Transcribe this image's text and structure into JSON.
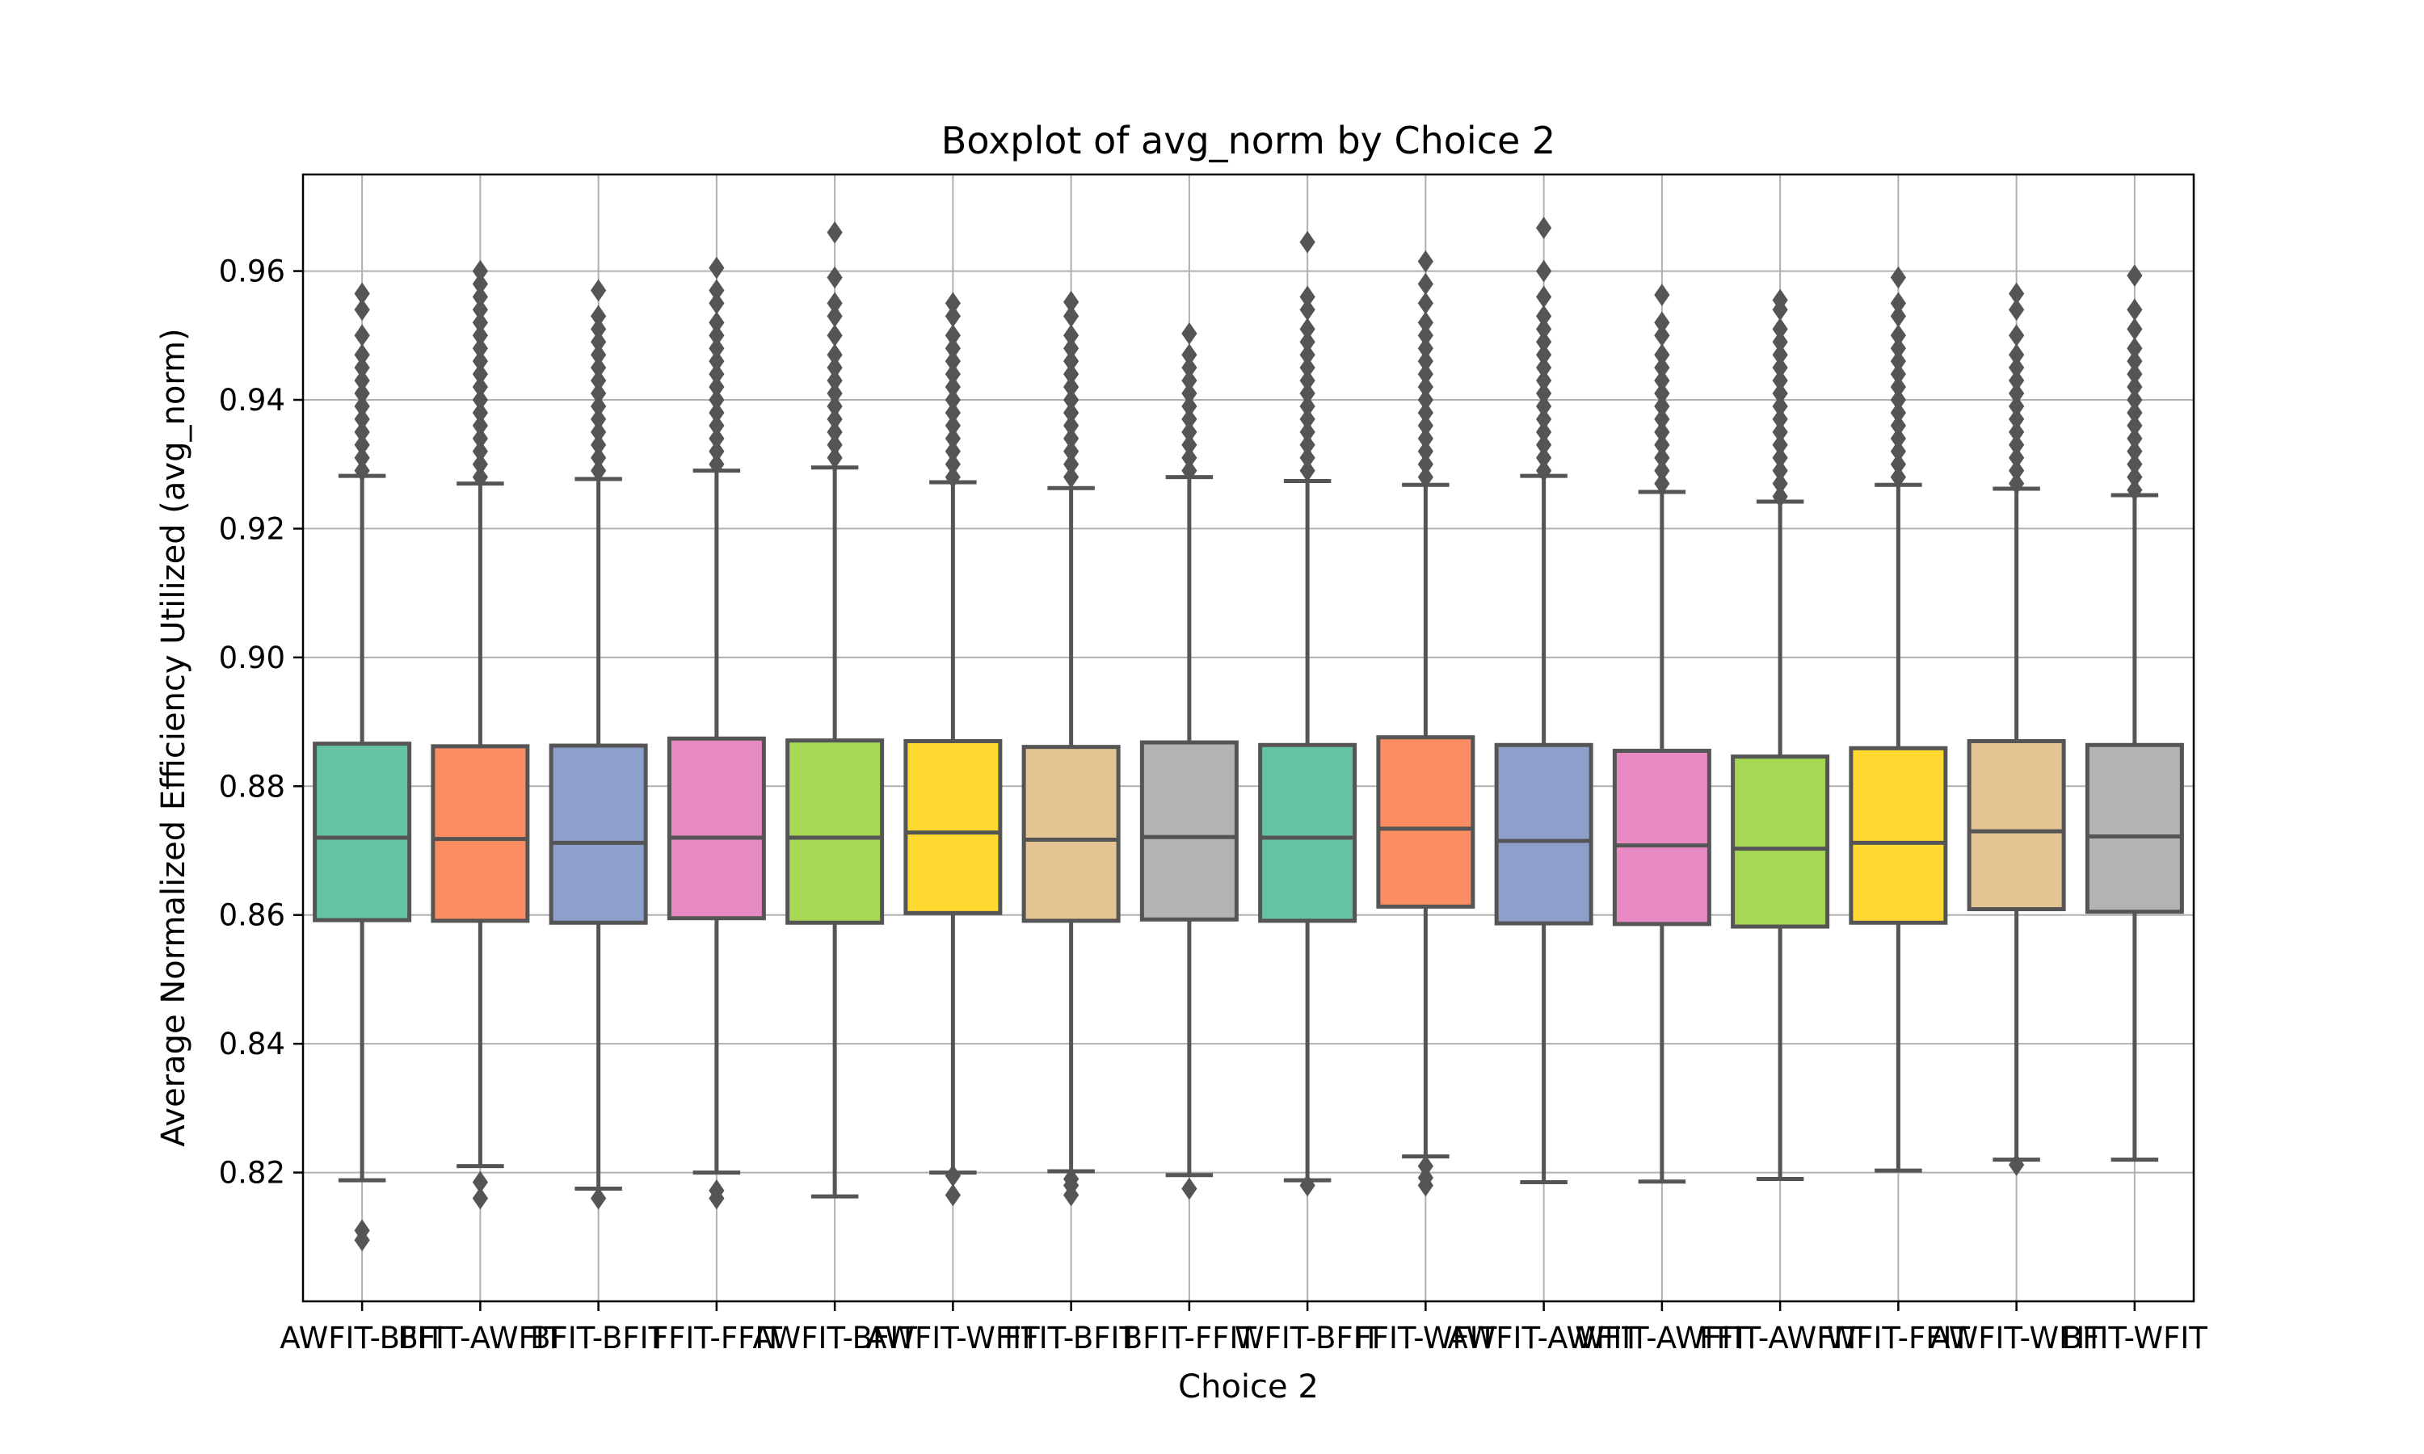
{
  "chart_data": {
    "type": "box",
    "title": "Boxplot of avg_norm by Choice 2",
    "xlabel": "Choice 2",
    "ylabel": "Average Normalized Efficiency Utilized (avg_norm)",
    "ylim": [
      0.8,
      0.975
    ],
    "yticks": [
      "0.82",
      "0.84",
      "0.86",
      "0.88",
      "0.90",
      "0.92",
      "0.94",
      "0.96"
    ],
    "grid": true,
    "categories": [
      "AWFIT-BFIT",
      "BFIT-AWFIT",
      "BFIT-BFIT",
      "FFIT-FFIT",
      "AWFIT-BFIT",
      "AWFIT-WFIT",
      "FFIT-BFIT",
      "BFIT-FFIT",
      "WFIT-BFIT",
      "FFIT-WFIT",
      "AWFIT-AWFIT",
      "WFIT-AWFIT",
      "FFIT-AWFIT",
      "WFIT-FFIT",
      "AWFIT-WFIT",
      "BFIT-WFIT"
    ],
    "colors": [
      "#66c2a5",
      "#fc8d62",
      "#8da0cb",
      "#e78ac3",
      "#a6d854",
      "#ffd92f",
      "#e5c494",
      "#b3b3b3",
      "#66c2a5",
      "#fc8d62",
      "#8da0cb",
      "#e78ac3",
      "#a6d854",
      "#ffd92f",
      "#e5c494",
      "#b3b3b3"
    ],
    "boxes": [
      {
        "whislo": 0.8188,
        "q1": 0.8592,
        "med": 0.872,
        "q3": 0.8866,
        "whishi": 0.9282,
        "fliers_high": [
          0.929,
          0.931,
          0.933,
          0.935,
          0.937,
          0.939,
          0.941,
          0.943,
          0.945,
          0.947,
          0.95,
          0.954,
          0.9565
        ],
        "fliers_low": [
          0.811,
          0.8095
        ]
      },
      {
        "whislo": 0.821,
        "q1": 0.8591,
        "med": 0.8718,
        "q3": 0.8862,
        "whishi": 0.927,
        "fliers_high": [
          0.928,
          0.93,
          0.932,
          0.934,
          0.936,
          0.938,
          0.94,
          0.942,
          0.944,
          0.946,
          0.948,
          0.95,
          0.952,
          0.954,
          0.956,
          0.958,
          0.96
        ],
        "fliers_low": [
          0.8185,
          0.816
        ]
      },
      {
        "whislo": 0.8175,
        "q1": 0.8588,
        "med": 0.8712,
        "q3": 0.8863,
        "whishi": 0.9277,
        "fliers_high": [
          0.929,
          0.931,
          0.933,
          0.935,
          0.937,
          0.939,
          0.941,
          0.943,
          0.945,
          0.947,
          0.949,
          0.951,
          0.953,
          0.957
        ],
        "fliers_low": [
          0.816
        ]
      },
      {
        "whislo": 0.82,
        "q1": 0.8595,
        "med": 0.872,
        "q3": 0.8874,
        "whishi": 0.929,
        "fliers_high": [
          0.93,
          0.932,
          0.934,
          0.936,
          0.938,
          0.94,
          0.942,
          0.944,
          0.946,
          0.948,
          0.95,
          0.952,
          0.955,
          0.957,
          0.9605
        ],
        "fliers_low": [
          0.8172,
          0.816
        ]
      },
      {
        "whislo": 0.8163,
        "q1": 0.8588,
        "med": 0.872,
        "q3": 0.8871,
        "whishi": 0.9295,
        "fliers_high": [
          0.931,
          0.933,
          0.935,
          0.937,
          0.939,
          0.941,
          0.943,
          0.945,
          0.947,
          0.95,
          0.953,
          0.955,
          0.959,
          0.966
        ],
        "fliers_low": []
      },
      {
        "whislo": 0.82,
        "q1": 0.8603,
        "med": 0.8728,
        "q3": 0.887,
        "whishi": 0.9272,
        "fliers_high": [
          0.928,
          0.93,
          0.932,
          0.934,
          0.936,
          0.938,
          0.94,
          0.942,
          0.944,
          0.946,
          0.948,
          0.95,
          0.953,
          0.955
        ],
        "fliers_low": [
          0.8195,
          0.8165
        ]
      },
      {
        "whislo": 0.8202,
        "q1": 0.8591,
        "med": 0.8717,
        "q3": 0.8861,
        "whishi": 0.9263,
        "fliers_high": [
          0.928,
          0.93,
          0.932,
          0.934,
          0.936,
          0.938,
          0.94,
          0.942,
          0.944,
          0.946,
          0.948,
          0.95,
          0.953,
          0.9552
        ],
        "fliers_low": [
          0.819,
          0.818,
          0.8165
        ]
      },
      {
        "whislo": 0.8196,
        "q1": 0.8593,
        "med": 0.8721,
        "q3": 0.8868,
        "whishi": 0.928,
        "fliers_high": [
          0.929,
          0.931,
          0.933,
          0.935,
          0.937,
          0.939,
          0.941,
          0.943,
          0.945,
          0.947,
          0.9503
        ],
        "fliers_low": [
          0.8175
        ]
      },
      {
        "whislo": 0.8188,
        "q1": 0.8591,
        "med": 0.872,
        "q3": 0.8864,
        "whishi": 0.9274,
        "fliers_high": [
          0.929,
          0.931,
          0.933,
          0.935,
          0.937,
          0.939,
          0.941,
          0.943,
          0.945,
          0.947,
          0.949,
          0.951,
          0.954,
          0.956,
          0.9645
        ],
        "fliers_low": [
          0.818
        ]
      },
      {
        "whislo": 0.8225,
        "q1": 0.8613,
        "med": 0.8734,
        "q3": 0.8876,
        "whishi": 0.9268,
        "fliers_high": [
          0.928,
          0.93,
          0.932,
          0.934,
          0.936,
          0.938,
          0.94,
          0.942,
          0.944,
          0.946,
          0.948,
          0.95,
          0.952,
          0.955,
          0.958,
          0.9615
        ],
        "fliers_low": [
          0.821,
          0.8192,
          0.818
        ]
      },
      {
        "whislo": 0.8185,
        "q1": 0.8587,
        "med": 0.8715,
        "q3": 0.8864,
        "whishi": 0.9282,
        "fliers_high": [
          0.929,
          0.931,
          0.933,
          0.935,
          0.937,
          0.939,
          0.941,
          0.943,
          0.945,
          0.947,
          0.949,
          0.951,
          0.953,
          0.956,
          0.96,
          0.9667
        ],
        "fliers_low": []
      },
      {
        "whislo": 0.8186,
        "q1": 0.8586,
        "med": 0.8708,
        "q3": 0.8855,
        "whishi": 0.9257,
        "fliers_high": [
          0.927,
          0.929,
          0.931,
          0.933,
          0.935,
          0.937,
          0.939,
          0.941,
          0.943,
          0.945,
          0.947,
          0.95,
          0.952,
          0.9563
        ],
        "fliers_low": []
      },
      {
        "whislo": 0.819,
        "q1": 0.8582,
        "med": 0.8703,
        "q3": 0.8846,
        "whishi": 0.9242,
        "fliers_high": [
          0.925,
          0.927,
          0.929,
          0.931,
          0.933,
          0.935,
          0.937,
          0.939,
          0.941,
          0.943,
          0.945,
          0.947,
          0.949,
          0.951,
          0.954,
          0.9555
        ],
        "fliers_low": []
      },
      {
        "whislo": 0.8203,
        "q1": 0.8588,
        "med": 0.8712,
        "q3": 0.8859,
        "whishi": 0.9268,
        "fliers_high": [
          0.928,
          0.93,
          0.932,
          0.934,
          0.936,
          0.938,
          0.94,
          0.942,
          0.944,
          0.946,
          0.948,
          0.95,
          0.953,
          0.955,
          0.959
        ],
        "fliers_low": []
      },
      {
        "whislo": 0.822,
        "q1": 0.8609,
        "med": 0.873,
        "q3": 0.887,
        "whishi": 0.9262,
        "fliers_high": [
          0.927,
          0.929,
          0.931,
          0.933,
          0.935,
          0.937,
          0.939,
          0.941,
          0.943,
          0.945,
          0.947,
          0.95,
          0.954,
          0.9565
        ],
        "fliers_low": [
          0.8212
        ]
      },
      {
        "whislo": 0.822,
        "q1": 0.8605,
        "med": 0.8722,
        "q3": 0.8864,
        "whishi": 0.9252,
        "fliers_high": [
          0.926,
          0.928,
          0.93,
          0.932,
          0.934,
          0.936,
          0.938,
          0.94,
          0.942,
          0.944,
          0.946,
          0.948,
          0.951,
          0.954,
          0.9593
        ],
        "fliers_low": []
      }
    ]
  }
}
